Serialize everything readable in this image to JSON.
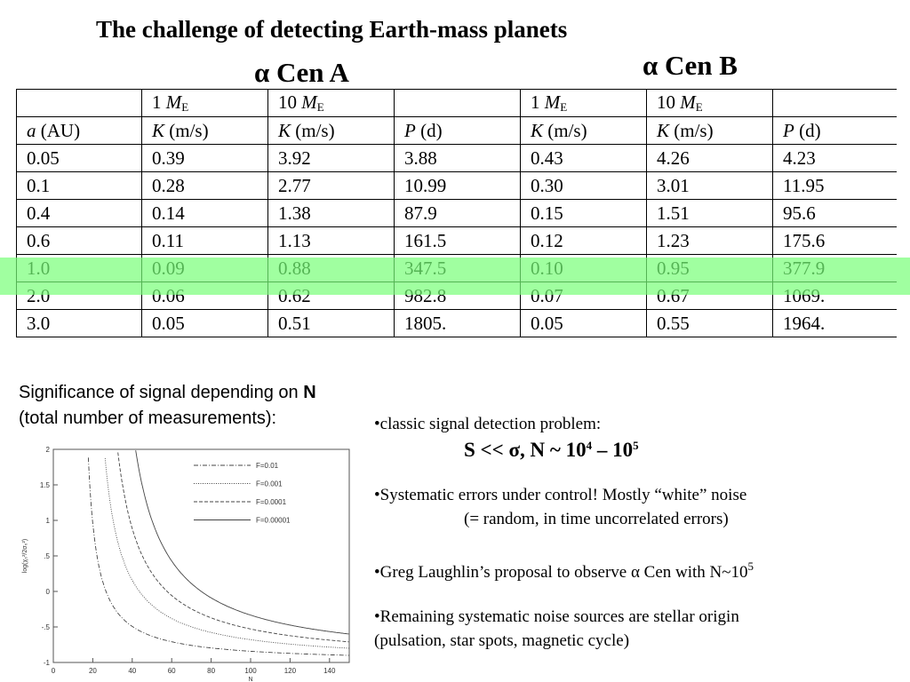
{
  "title": "The challenge of detecting Earth-mass planets",
  "star_a": "α Cen A",
  "star_b": "α Cen B",
  "table": {
    "header1": [
      "",
      "1 ",
      "M",
      "E",
      "10 ",
      "M",
      "E"
    ],
    "header2": {
      "a_italic": "a",
      "a_unit": " (AU)",
      "k_italic": "K",
      "k_unit": " (m/s)",
      "p_italic": "P",
      "p_unit": " (d)"
    },
    "rows": [
      [
        "0.05",
        "0.39",
        "3.92",
        "3.88",
        "0.43",
        "4.26",
        "4.23"
      ],
      [
        "0.1",
        "0.28",
        "2.77",
        "10.99",
        "0.30",
        "3.01",
        "11.95"
      ],
      [
        "0.4",
        "0.14",
        "1.38",
        "87.9",
        "0.15",
        "1.51",
        "95.6"
      ],
      [
        "0.6",
        "0.11",
        "1.13",
        "161.5",
        "0.12",
        "1.23",
        "175.6"
      ],
      [
        "1.0",
        "0.09",
        "0.88",
        "347.5",
        "0.10",
        "0.95",
        "377.9"
      ],
      [
        "2.0",
        "0.06",
        "0.62",
        "982.8",
        "0.07",
        "0.67",
        "1069."
      ],
      [
        "3.0",
        "0.05",
        "0.51",
        "1805.",
        "0.05",
        "0.55",
        "1964."
      ]
    ],
    "highlight_row": 4,
    "highlight_color": "#78ff78"
  },
  "significance": {
    "line1": "Significance of signal depending on ",
    "line1_bold": "N",
    "line2": "(total number of measurements):"
  },
  "bullets": {
    "b1": "•classic signal detection problem:",
    "formula_main": "S << σ, N ~ 10",
    "formula_exp1": "4",
    "formula_dash": " – 10",
    "formula_exp2": "5",
    "b2_line1": "•Systematic errors under control! Mostly “white” noise",
    "b2_line2": "(= random, in time uncorrelated errors)",
    "b3_main": "•Greg Laughlin’s proposal to observe α Cen with N~10",
    "b3_exp": "5",
    "b4_line1": "•Remaining systematic noise sources are stellar origin",
    "b4_line2": "(pulsation, star spots, magnetic cycle)"
  },
  "chart_data": {
    "type": "line",
    "xlabel": "N",
    "ylabel": "log(χ₀²/2σ₀²)",
    "xlim": [
      0,
      150
    ],
    "ylim": [
      -1,
      2
    ],
    "x_ticks": [
      "0",
      "20",
      "40",
      "60",
      "80",
      "100",
      "120",
      "140"
    ],
    "y_ticks": [
      "-1",
      "-.5",
      "0",
      ".5",
      "1",
      "1.5",
      "2"
    ],
    "series": [
      {
        "name": "F=0.01",
        "style": "dash-dot",
        "asymptote": 13,
        "y_at_150": -0.9
      },
      {
        "name": "F=0.001",
        "style": "dotted",
        "asymptote": 17,
        "y_at_150": -0.8
      },
      {
        "name": "F=0.0001",
        "style": "dashed",
        "asymptote": 20,
        "y_at_150": -0.71
      },
      {
        "name": "F=0.00001",
        "style": "solid",
        "asymptote": 25,
        "y_at_150": -0.6
      }
    ]
  }
}
